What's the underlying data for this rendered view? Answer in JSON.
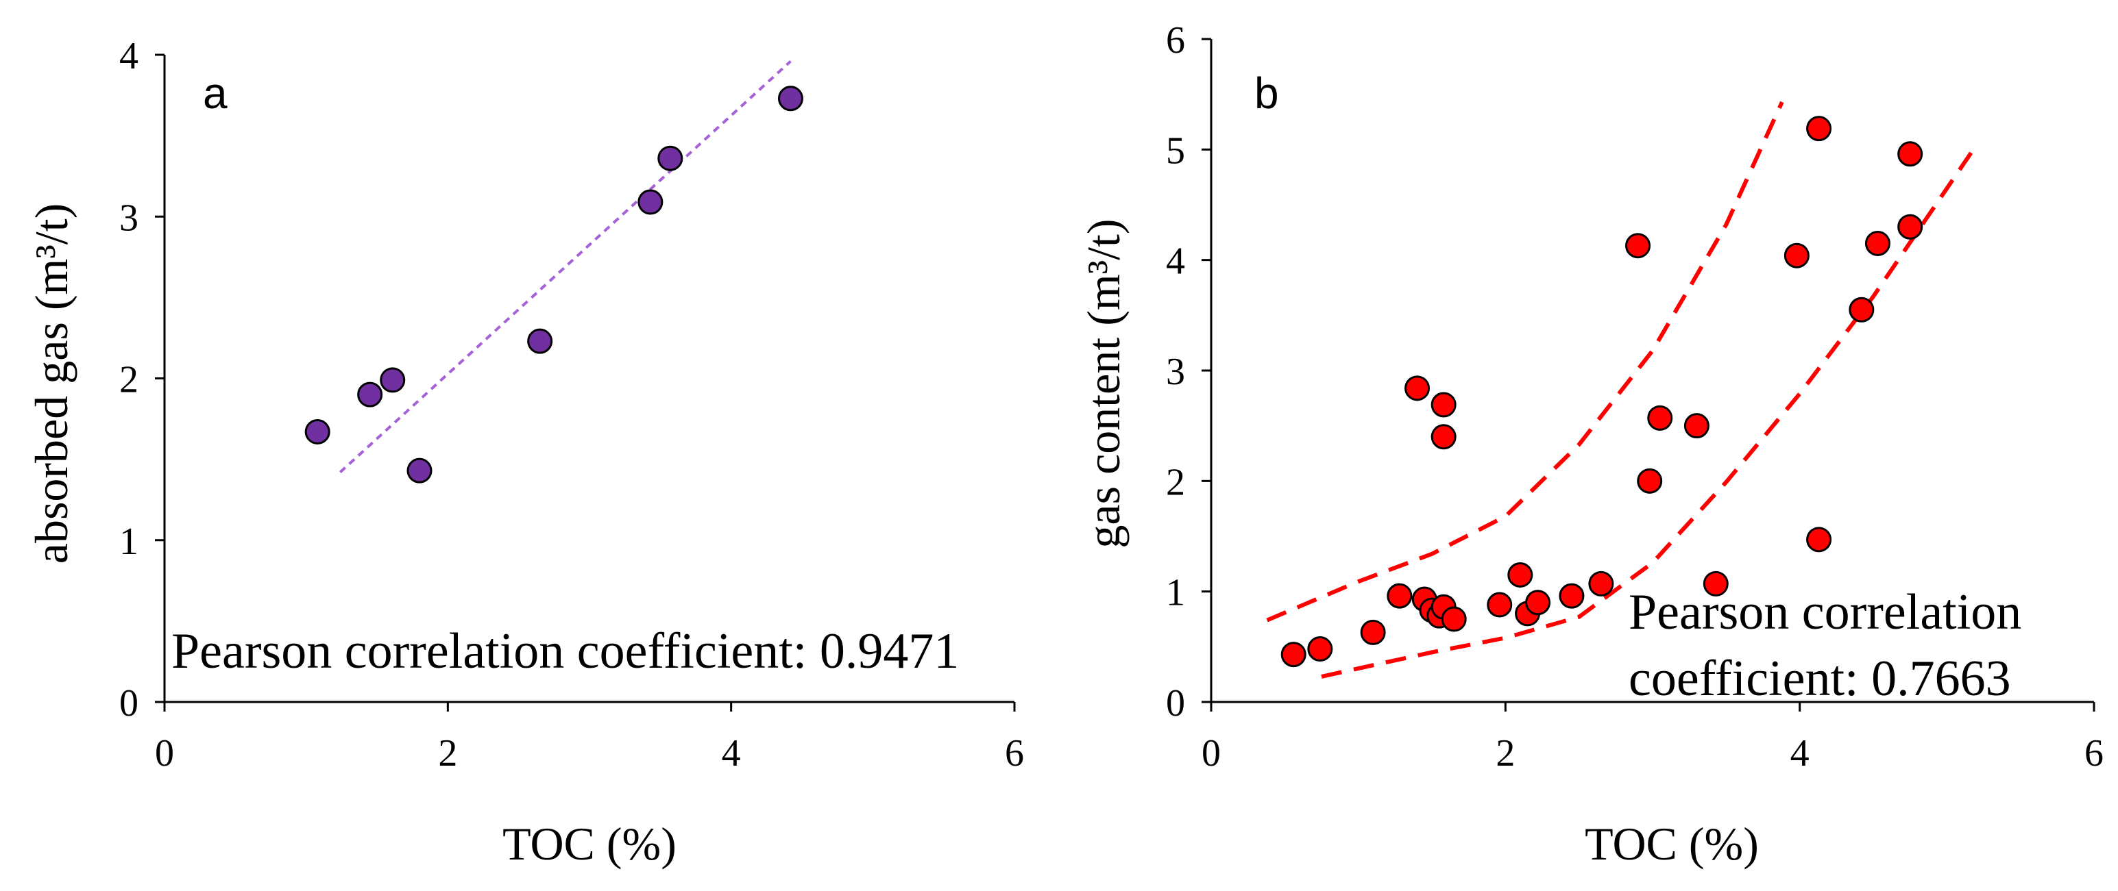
{
  "chart_data": [
    {
      "type": "scatter",
      "panel_label": "a",
      "xlabel": "TOC (%)",
      "ylabel": "absorbed gas (m³/t)",
      "xlim": [
        0,
        6
      ],
      "ylim": [
        0,
        4
      ],
      "xticks": [
        0,
        2,
        4,
        6
      ],
      "yticks": [
        0,
        1,
        2,
        3,
        4
      ],
      "marker_color": "#7030A0",
      "points": [
        {
          "x": 1.08,
          "y": 1.67
        },
        {
          "x": 1.45,
          "y": 1.9
        },
        {
          "x": 1.61,
          "y": 1.99
        },
        {
          "x": 1.8,
          "y": 1.43
        },
        {
          "x": 2.65,
          "y": 2.23
        },
        {
          "x": 3.43,
          "y": 3.09
        },
        {
          "x": 3.57,
          "y": 3.36
        },
        {
          "x": 4.42,
          "y": 3.73
        }
      ],
      "trendline": {
        "color": "#A561D8",
        "style": "dotted",
        "points": [
          [
            1.24,
            1.42
          ],
          [
            4.42,
            3.96
          ]
        ]
      },
      "annotation": "Pearson correlation coefficient: 0.9471"
    },
    {
      "type": "scatter",
      "panel_label": "b",
      "xlabel": "TOC (%)",
      "ylabel": "gas content (m³/t)",
      "xlim": [
        0,
        6
      ],
      "ylim": [
        0,
        6
      ],
      "xticks": [
        0,
        2,
        4,
        6
      ],
      "yticks": [
        0,
        1,
        2,
        3,
        4,
        5,
        6
      ],
      "marker_color": "#FF0000",
      "points": [
        {
          "x": 0.56,
          "y": 0.43
        },
        {
          "x": 0.74,
          "y": 0.48
        },
        {
          "x": 1.1,
          "y": 0.63
        },
        {
          "x": 1.28,
          "y": 0.96
        },
        {
          "x": 1.4,
          "y": 2.84
        },
        {
          "x": 1.45,
          "y": 0.93
        },
        {
          "x": 1.5,
          "y": 0.83
        },
        {
          "x": 1.55,
          "y": 0.78
        },
        {
          "x": 1.58,
          "y": 0.86
        },
        {
          "x": 1.58,
          "y": 2.69
        },
        {
          "x": 1.58,
          "y": 2.4
        },
        {
          "x": 1.65,
          "y": 0.75
        },
        {
          "x": 1.96,
          "y": 0.88
        },
        {
          "x": 2.1,
          "y": 1.15
        },
        {
          "x": 2.15,
          "y": 0.8
        },
        {
          "x": 2.22,
          "y": 0.9
        },
        {
          "x": 2.45,
          "y": 0.96
        },
        {
          "x": 2.65,
          "y": 1.07
        },
        {
          "x": 2.9,
          "y": 4.13
        },
        {
          "x": 2.98,
          "y": 2.0
        },
        {
          "x": 3.05,
          "y": 2.57
        },
        {
          "x": 3.3,
          "y": 2.5
        },
        {
          "x": 3.43,
          "y": 1.07
        },
        {
          "x": 3.98,
          "y": 4.04
        },
        {
          "x": 4.13,
          "y": 5.19
        },
        {
          "x": 4.13,
          "y": 1.47
        },
        {
          "x": 4.42,
          "y": 3.55
        },
        {
          "x": 4.53,
          "y": 4.15
        },
        {
          "x": 4.75,
          "y": 4.96
        },
        {
          "x": 4.75,
          "y": 4.3
        }
      ],
      "envelope": {
        "color": "#FF0000",
        "style": "dashed",
        "upper": [
          [
            0.38,
            0.74
          ],
          [
            1.0,
            1.09
          ],
          [
            1.5,
            1.34
          ],
          [
            2.0,
            1.68
          ],
          [
            2.5,
            2.33
          ],
          [
            3.0,
            3.18
          ],
          [
            3.5,
            4.32
          ],
          [
            3.88,
            5.43
          ]
        ],
        "lower": [
          [
            0.75,
            0.23
          ],
          [
            1.5,
            0.45
          ],
          [
            2.0,
            0.58
          ],
          [
            2.5,
            0.77
          ],
          [
            3.0,
            1.26
          ],
          [
            3.5,
            1.99
          ],
          [
            4.0,
            2.79
          ],
          [
            4.5,
            3.67
          ],
          [
            5.18,
            5.0
          ]
        ]
      },
      "annotation_lines": [
        "Pearson correlation",
        "coefficient: 0.7663"
      ]
    }
  ]
}
